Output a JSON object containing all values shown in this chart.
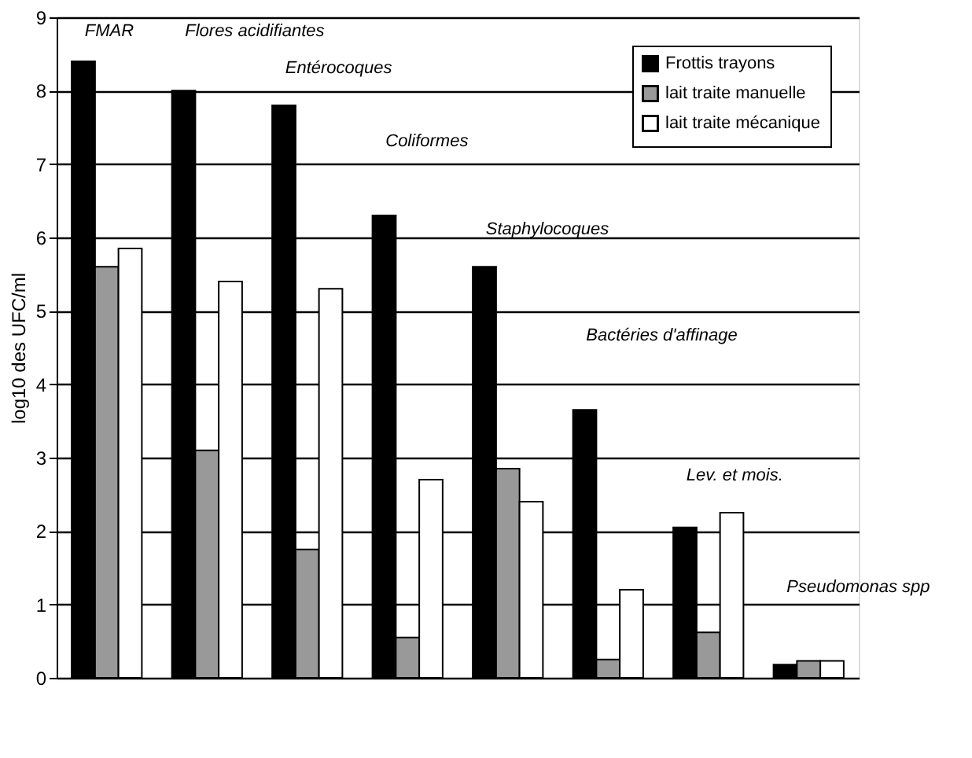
{
  "chart_data": {
    "type": "bar",
    "ylabel": "log10 des UFC/ml",
    "categories": [
      null,
      null,
      null,
      null,
      null,
      null,
      null,
      null
    ],
    "annotations": [
      "FMAR",
      "Flores acidifiantes",
      "Entérocoques",
      "Coliformes",
      "Staphylocoques",
      "Bactéries d'affinage",
      "Lev. et mois.",
      "Pseudomonas spp"
    ],
    "series": [
      {
        "name": "Frottis trayons",
        "color": "#000000",
        "values": [
          8.4,
          8.0,
          7.8,
          6.3,
          5.6,
          3.65,
          2.05,
          0.18
        ]
      },
      {
        "name": "lait traite manuelle",
        "color": "#999999",
        "values": [
          5.6,
          3.1,
          1.75,
          0.55,
          2.85,
          0.25,
          0.62,
          0.23
        ]
      },
      {
        "name": "lait traite mécanique",
        "color": "#ffffff",
        "values": [
          5.85,
          5.4,
          5.3,
          2.7,
          2.4,
          1.2,
          2.25,
          0.23
        ]
      }
    ],
    "ylim": [
      0,
      9
    ],
    "yticks": [
      0,
      1,
      2,
      3,
      4,
      5,
      6,
      7,
      8,
      9
    ],
    "grid": "y",
    "legend": "top right",
    "tick_labels": "y"
  }
}
